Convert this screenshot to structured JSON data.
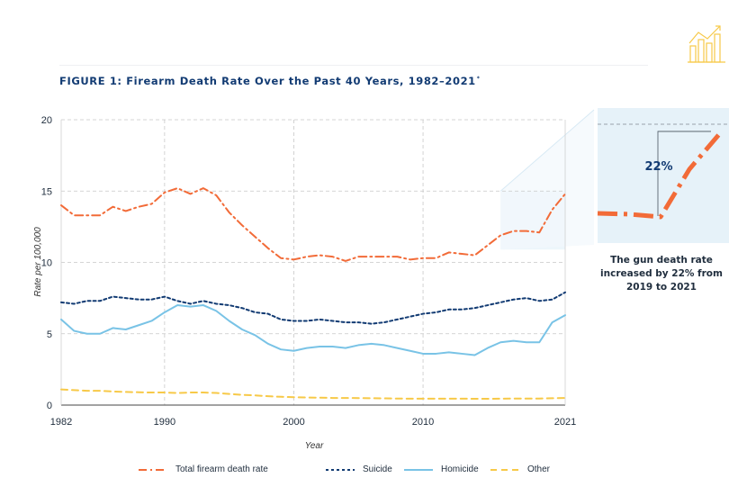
{
  "figure": {
    "title": "FIGURE 1: Firearm Death Rate Over the Past 40 Years, 1982–2021",
    "title_footnote": "*",
    "icon": "line-chart-icon"
  },
  "callout": {
    "percent_label": "22%",
    "text": "The gun death rate increased by 22% from 2019 to 2021"
  },
  "chart_data": {
    "type": "line",
    "xlabel": "Year",
    "ylabel": "Rate per 100,000",
    "xlim": [
      1982,
      2021
    ],
    "ylim": [
      0,
      20
    ],
    "x_ticks": [
      "1982",
      "1990",
      "2000",
      "2010",
      "2021"
    ],
    "y_ticks": [
      "0",
      "5",
      "10",
      "15",
      "20"
    ],
    "grid": true,
    "legend_position": "bottom",
    "x": [
      1982,
      1983,
      1984,
      1985,
      1986,
      1987,
      1988,
      1989,
      1990,
      1991,
      1992,
      1993,
      1994,
      1995,
      1996,
      1997,
      1998,
      1999,
      2000,
      2001,
      2002,
      2003,
      2004,
      2005,
      2006,
      2007,
      2008,
      2009,
      2010,
      2011,
      2012,
      2013,
      2014,
      2015,
      2016,
      2017,
      2018,
      2019,
      2020,
      2021
    ],
    "series": [
      {
        "name": "Total firearm death rate",
        "color": "#f26b38",
        "style": "dashdot",
        "values": [
          14.0,
          13.3,
          13.3,
          13.3,
          13.9,
          13.6,
          13.9,
          14.1,
          14.9,
          15.2,
          14.8,
          15.2,
          14.7,
          13.5,
          12.6,
          11.8,
          11.0,
          10.3,
          10.2,
          10.4,
          10.5,
          10.4,
          10.1,
          10.4,
          10.4,
          10.4,
          10.4,
          10.2,
          10.3,
          10.3,
          10.7,
          10.6,
          10.5,
          11.2,
          11.9,
          12.2,
          12.2,
          12.1,
          13.7,
          14.8
        ]
      },
      {
        "name": "Suicide",
        "color": "#123b73",
        "style": "dotted",
        "values": [
          7.2,
          7.1,
          7.3,
          7.3,
          7.6,
          7.5,
          7.4,
          7.4,
          7.6,
          7.3,
          7.1,
          7.3,
          7.1,
          7.0,
          6.8,
          6.5,
          6.4,
          6.0,
          5.9,
          5.9,
          6.0,
          5.9,
          5.8,
          5.8,
          5.7,
          5.8,
          6.0,
          6.2,
          6.4,
          6.5,
          6.7,
          6.7,
          6.8,
          7.0,
          7.2,
          7.4,
          7.5,
          7.3,
          7.4,
          7.9
        ]
      },
      {
        "name": "Homicide",
        "color": "#79c3e6",
        "style": "solid",
        "values": [
          6.0,
          5.2,
          5.0,
          5.0,
          5.4,
          5.3,
          5.6,
          5.9,
          6.5,
          7.0,
          6.9,
          7.0,
          6.6,
          5.9,
          5.3,
          4.9,
          4.3,
          3.9,
          3.8,
          4.0,
          4.1,
          4.1,
          4.0,
          4.2,
          4.3,
          4.2,
          4.0,
          3.8,
          3.6,
          3.6,
          3.7,
          3.6,
          3.5,
          4.0,
          4.4,
          4.5,
          4.4,
          4.4,
          5.8,
          6.3
        ]
      },
      {
        "name": "Other",
        "color": "#f7c948",
        "style": "dashed",
        "values": [
          1.1,
          1.05,
          1.0,
          1.0,
          0.95,
          0.92,
          0.9,
          0.88,
          0.88,
          0.85,
          0.88,
          0.88,
          0.85,
          0.78,
          0.72,
          0.68,
          0.62,
          0.58,
          0.55,
          0.53,
          0.52,
          0.5,
          0.5,
          0.49,
          0.48,
          0.47,
          0.46,
          0.45,
          0.45,
          0.45,
          0.45,
          0.45,
          0.44,
          0.44,
          0.45,
          0.46,
          0.46,
          0.46,
          0.48,
          0.5
        ]
      }
    ]
  }
}
